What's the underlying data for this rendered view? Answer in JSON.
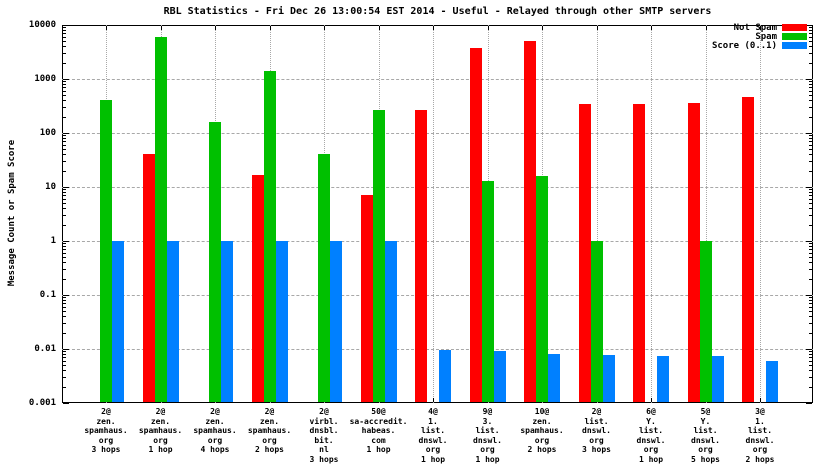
{
  "chart_data": {
    "type": "bar",
    "title": "RBL Statistics - Fri Dec 26 13:00:54 EST 2014 - Useful - Relayed through other SMTP servers",
    "ylabel": "Message Count or Spam Score",
    "xlabel": "",
    "yscale": "log",
    "ylim": [
      0.001,
      10000
    ],
    "ytick_labels": [
      "10000",
      "1000",
      "100",
      "10",
      "1",
      "0.1",
      "0.01",
      "0.001"
    ],
    "ytick_values": [
      10000,
      1000,
      100,
      10,
      1,
      0.1,
      0.01,
      0.001
    ],
    "grid": true,
    "legend_position": "top-right-inside",
    "background_color": "#ffffff",
    "grid_color": "#a8a8a8",
    "border_color": "#000000",
    "categories": [
      [
        "2@",
        "zen.",
        "spamhaus.",
        "org",
        "3 hops"
      ],
      [
        "2@",
        "zen.",
        "spamhaus.",
        "org",
        "1 hop"
      ],
      [
        "2@",
        "zen.",
        "spamhaus.",
        "org",
        "4 hops"
      ],
      [
        "2@",
        "zen.",
        "spamhaus.",
        "org",
        "2 hops"
      ],
      [
        "2@",
        "virbl.",
        "dnsbl.",
        "bit.",
        "nl",
        "3 hops"
      ],
      [
        "50@",
        "sa-accredit.",
        "habeas.",
        "com",
        "1 hop"
      ],
      [
        "4@",
        "1.",
        "list.",
        "dnswl.",
        "org",
        "1 hop"
      ],
      [
        "9@",
        "3.",
        "list.",
        "dnswl.",
        "org",
        "1 hop"
      ],
      [
        "10@",
        "zen.",
        "spamhaus.",
        "org",
        "2 hops"
      ],
      [
        "2@",
        "list.",
        "dnswl.",
        "org",
        "3 hops"
      ],
      [
        "6@",
        "Y.",
        "list.",
        "dnswl.",
        "org",
        "1 hop"
      ],
      [
        "5@",
        "Y.",
        "list.",
        "dnswl.",
        "org",
        "5 hops"
      ],
      [
        "3@",
        "1.",
        "list.",
        "dnswl.",
        "org",
        "2 hops"
      ]
    ],
    "series": [
      {
        "name": "Not Spam",
        "color": "#ff0000",
        "values": [
          null,
          40,
          null,
          17,
          null,
          7,
          270,
          3700,
          5000,
          350,
          350,
          365,
          460
        ]
      },
      {
        "name": "Spam",
        "color": "#00c000",
        "values": [
          400,
          6000,
          160,
          1400,
          40,
          270,
          null,
          13,
          16,
          1,
          null,
          1,
          null
        ]
      },
      {
        "name": "Score (0..1)",
        "color": "#0080ff",
        "values": [
          1,
          1,
          1,
          1,
          1,
          1,
          0.0095,
          0.009,
          0.008,
          0.0078,
          0.0074,
          0.0074,
          0.006
        ]
      }
    ]
  }
}
